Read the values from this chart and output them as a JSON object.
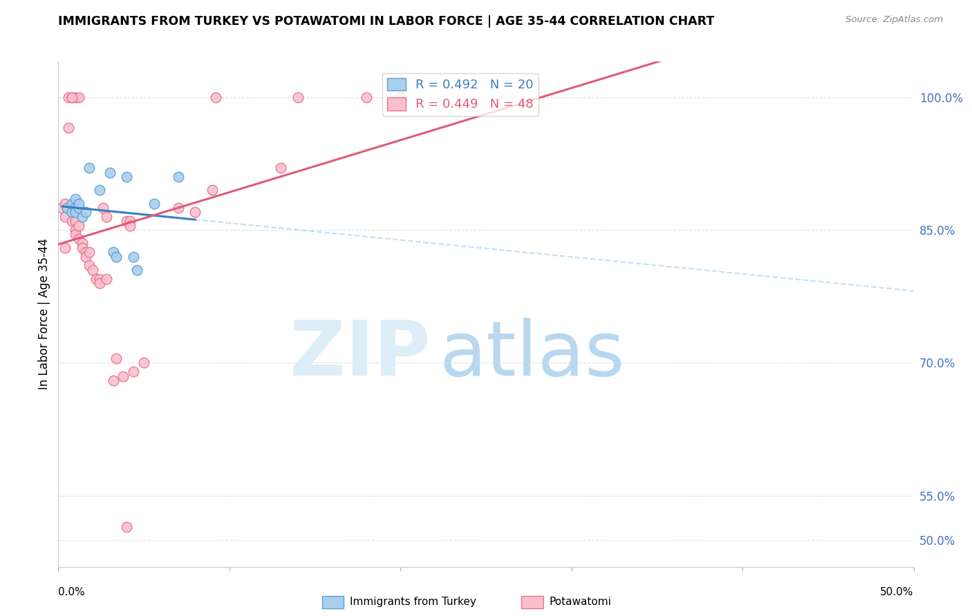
{
  "title": "IMMIGRANTS FROM TURKEY VS POTAWATOMI IN LABOR FORCE | AGE 35-44 CORRELATION CHART",
  "source": "Source: ZipAtlas.com",
  "ylabel": "In Labor Force | Age 35-44",
  "yticks": [
    50.0,
    55.0,
    70.0,
    85.0,
    100.0
  ],
  "ytick_labels": [
    "50.0%",
    "55.0%",
    "70.0%",
    "85.0%",
    "100.0%"
  ],
  "xlim": [
    0.0,
    50.0
  ],
  "ylim": [
    47.0,
    104.0
  ],
  "legend_blue_label": "R = 0.492   N = 20",
  "legend_pink_label": "R = 0.449   N = 48",
  "blue_fill_color": "#aacfee",
  "blue_edge_color": "#5a9fd4",
  "pink_fill_color": "#f9c0cc",
  "pink_edge_color": "#e87090",
  "blue_line_color": "#3a7fbf",
  "pink_line_color": "#e05a78",
  "blue_dash_color": "#a0c8e8",
  "blue_scatter": [
    [
      0.5,
      87.5
    ],
    [
      0.8,
      88.0
    ],
    [
      0.8,
      87.0
    ],
    [
      1.0,
      88.5
    ],
    [
      1.0,
      87.5
    ],
    [
      1.0,
      87.0
    ],
    [
      1.2,
      87.5
    ],
    [
      1.2,
      88.0
    ],
    [
      1.4,
      86.5
    ],
    [
      1.6,
      87.0
    ],
    [
      1.8,
      92.0
    ],
    [
      2.4,
      89.5
    ],
    [
      3.0,
      91.5
    ],
    [
      3.2,
      82.5
    ],
    [
      3.4,
      82.0
    ],
    [
      4.0,
      91.0
    ],
    [
      4.4,
      82.0
    ],
    [
      4.6,
      80.5
    ],
    [
      5.6,
      88.0
    ],
    [
      7.0,
      91.0
    ]
  ],
  "pink_scatter": [
    [
      0.2,
      87.5
    ],
    [
      0.4,
      88.0
    ],
    [
      0.4,
      86.5
    ],
    [
      0.4,
      83.0
    ],
    [
      0.6,
      100.0
    ],
    [
      0.6,
      96.5
    ],
    [
      0.8,
      100.0
    ],
    [
      0.8,
      88.0
    ],
    [
      0.8,
      86.0
    ],
    [
      1.0,
      100.0
    ],
    [
      1.0,
      87.5
    ],
    [
      1.0,
      86.0
    ],
    [
      1.0,
      85.0
    ],
    [
      1.0,
      84.5
    ],
    [
      1.2,
      100.0
    ],
    [
      1.2,
      85.5
    ],
    [
      1.2,
      84.0
    ],
    [
      1.4,
      83.5
    ],
    [
      1.4,
      83.0
    ],
    [
      1.6,
      82.5
    ],
    [
      1.6,
      82.0
    ],
    [
      1.8,
      82.5
    ],
    [
      1.8,
      81.0
    ],
    [
      2.0,
      80.5
    ],
    [
      2.2,
      79.5
    ],
    [
      2.4,
      79.5
    ],
    [
      2.4,
      79.0
    ],
    [
      2.6,
      87.5
    ],
    [
      2.8,
      86.5
    ],
    [
      2.8,
      79.5
    ],
    [
      3.2,
      68.0
    ],
    [
      3.4,
      70.5
    ],
    [
      3.8,
      68.5
    ],
    [
      4.0,
      86.0
    ],
    [
      4.2,
      86.0
    ],
    [
      4.2,
      85.5
    ],
    [
      4.4,
      69.0
    ],
    [
      5.0,
      70.0
    ],
    [
      7.0,
      87.5
    ],
    [
      8.0,
      87.0
    ],
    [
      9.0,
      89.5
    ],
    [
      9.2,
      100.0
    ],
    [
      13.0,
      92.0
    ],
    [
      14.0,
      100.0
    ],
    [
      18.0,
      100.0
    ],
    [
      20.0,
      100.0
    ],
    [
      4.0,
      51.5
    ],
    [
      0.8,
      100.0
    ]
  ],
  "watermark_zip": "ZIP",
  "watermark_atlas": "atlas",
  "watermark_zip_color": "#ddeef8",
  "watermark_atlas_color": "#b8d8f0"
}
